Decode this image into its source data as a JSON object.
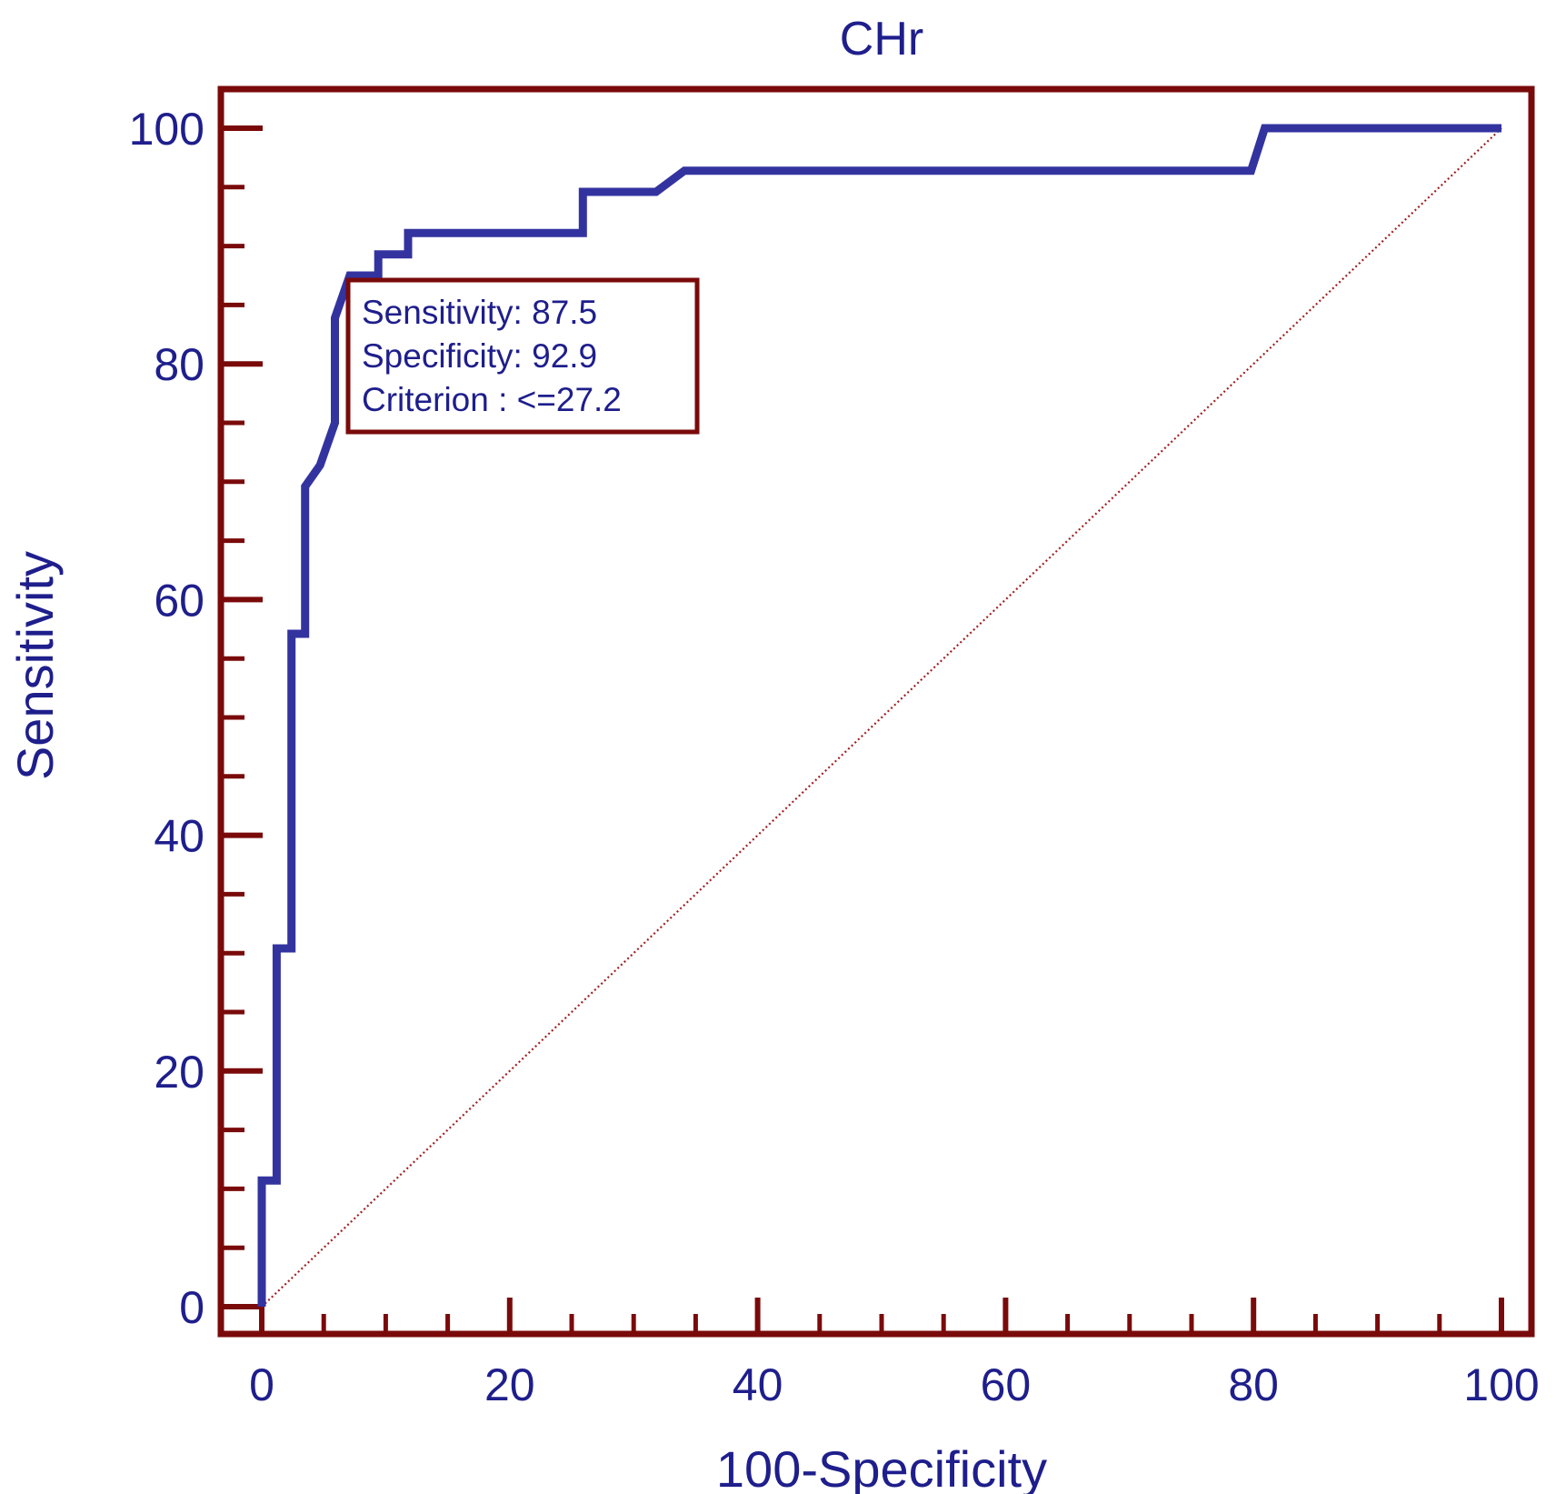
{
  "chart_data": {
    "type": "line",
    "title": "CHr",
    "xlabel": "100-Specificity",
    "ylabel": "Sensitivity",
    "xlim": [
      0,
      100
    ],
    "ylim": [
      0,
      100
    ],
    "x_ticks": [
      0,
      20,
      40,
      60,
      80,
      100
    ],
    "y_ticks": [
      0,
      20,
      40,
      60,
      80,
      100
    ],
    "x_tick_labels": [
      "0",
      "20",
      "40",
      "60",
      "80",
      "100"
    ],
    "y_tick_labels": [
      "0",
      "20",
      "40",
      "60",
      "80",
      "100"
    ],
    "minor_tick_step": 5,
    "grid": false,
    "series": [
      {
        "name": "",
        "style": "solid",
        "color": "#3333a0",
        "points": [
          [
            0,
            0
          ],
          [
            0,
            10.7
          ],
          [
            1.2,
            10.7
          ],
          [
            1.2,
            30.4
          ],
          [
            2.4,
            30.4
          ],
          [
            2.4,
            57.1
          ],
          [
            3.5,
            57.1
          ],
          [
            3.5,
            69.6
          ],
          [
            4.7,
            71.4
          ],
          [
            5.9,
            75
          ],
          [
            5.9,
            83.9
          ],
          [
            7.1,
            87.5
          ],
          [
            9.4,
            87.5
          ],
          [
            9.4,
            89.3
          ],
          [
            11.8,
            89.3
          ],
          [
            11.8,
            91.1
          ],
          [
            25.9,
            91.1
          ],
          [
            25.9,
            94.6
          ],
          [
            31.8,
            94.6
          ],
          [
            34.1,
            96.4
          ],
          [
            79.8,
            96.4
          ],
          [
            80.9,
            100
          ],
          [
            100,
            100
          ]
        ]
      },
      {
        "name": "",
        "style": "dotted",
        "color": "#a02020",
        "points": [
          [
            0,
            0
          ],
          [
            100,
            100
          ]
        ]
      }
    ],
    "annotation": {
      "lines": [
        "Sensitivity: 87.5",
        "Specificity: 92.9",
        "Criterion : <=27.2"
      ],
      "anchor": [
        7.1,
        87.5
      ]
    },
    "colors": {
      "frame": "#7a0a0a",
      "text": "#1e1e8c",
      "curve": "#3333a0",
      "diagonal": "#a02020"
    }
  }
}
